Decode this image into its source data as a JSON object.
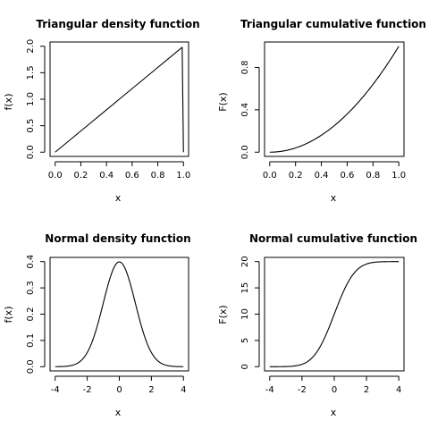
{
  "chart_data": [
    {
      "type": "line",
      "title": "Triangular density function",
      "xlabel": "x",
      "ylabel": "f(x)",
      "xlim": [
        0,
        1
      ],
      "ylim": [
        0,
        2
      ],
      "xticks": [
        0,
        0.2,
        0.4,
        0.6,
        0.8,
        1
      ],
      "xtick_labels": [
        "0.0",
        "0.2",
        "0.4",
        "0.6",
        "0.8",
        "1.0"
      ],
      "yticks": [
        0,
        0.5,
        1,
        1.5,
        2
      ],
      "ytick_labels": [
        "0.0",
        "0.5",
        "1.0",
        "1.5",
        "2.0"
      ],
      "series": [
        {
          "x": [
            0,
            0.25,
            0.5,
            0.75,
            0.99,
            1.0
          ],
          "y": [
            0,
            0.5,
            1.0,
            1.5,
            1.98,
            0
          ]
        }
      ]
    },
    {
      "type": "line",
      "title": "Triangular cumulative function",
      "xlabel": "x",
      "ylabel": "F(x)",
      "xlim": [
        0,
        1
      ],
      "ylim": [
        0,
        1
      ],
      "xticks": [
        0,
        0.2,
        0.4,
        0.6,
        0.8,
        1
      ],
      "xtick_labels": [
        "0.0",
        "0.2",
        "0.4",
        "0.6",
        "0.8",
        "1.0"
      ],
      "yticks": [
        0,
        0.4,
        0.8
      ],
      "ytick_labels": [
        "0.0",
        "0.4",
        "0.8"
      ],
      "series": [
        {
          "x": [
            0,
            0.1,
            0.2,
            0.3,
            0.4,
            0.5,
            0.6,
            0.7,
            0.8,
            0.9,
            1.0
          ],
          "y": [
            0,
            0.01,
            0.04,
            0.09,
            0.16,
            0.25,
            0.36,
            0.49,
            0.64,
            0.81,
            1.0
          ]
        }
      ]
    },
    {
      "type": "line",
      "title": "Normal density function",
      "xlabel": "x",
      "ylabel": "f(x)",
      "xlim": [
        -4,
        4
      ],
      "ylim": [
        0,
        0.4
      ],
      "xticks": [
        -4,
        -2,
        0,
        2,
        4
      ],
      "xtick_labels": [
        "-4",
        "-2",
        "0",
        "2",
        "4"
      ],
      "yticks": [
        0,
        0.1,
        0.2,
        0.3,
        0.4
      ],
      "ytick_labels": [
        "0.0",
        "0.1",
        "0.2",
        "0.3",
        "0.4"
      ],
      "series": [
        {
          "x": [
            -4,
            -3.5,
            -3,
            -2.5,
            -2,
            -1.5,
            -1,
            -0.5,
            0,
            0.5,
            1,
            1.5,
            2,
            2.5,
            3,
            3.5,
            4
          ],
          "y": [
            0.0001,
            0.0009,
            0.0044,
            0.0175,
            0.054,
            0.1295,
            0.242,
            0.3521,
            0.3989,
            0.3521,
            0.242,
            0.1295,
            0.054,
            0.0175,
            0.0044,
            0.0009,
            0.0001
          ]
        }
      ]
    },
    {
      "type": "line",
      "title": "Normal cumulative function",
      "xlabel": "x",
      "ylabel": "F(x)",
      "xlim": [
        -4,
        4
      ],
      "ylim": [
        0,
        20
      ],
      "xticks": [
        -4,
        -2,
        0,
        2,
        4
      ],
      "xtick_labels": [
        "-4",
        "-2",
        "0",
        "2",
        "4"
      ],
      "yticks": [
        0,
        5,
        10,
        15,
        20
      ],
      "ytick_labels": [
        "0",
        "5",
        "10",
        "15",
        "20"
      ],
      "series": [
        {
          "x": [
            -4,
            -3.5,
            -3,
            -2.5,
            -2,
            -1.5,
            -1,
            -0.5,
            0,
            0.5,
            1,
            1.5,
            2,
            2.5,
            3,
            3.5,
            4
          ],
          "y": [
            0.0006,
            0.0047,
            0.027,
            0.124,
            0.455,
            1.336,
            3.173,
            6.171,
            10.0,
            13.829,
            16.827,
            18.664,
            19.545,
            19.876,
            19.973,
            19.995,
            20.0
          ]
        }
      ]
    }
  ]
}
